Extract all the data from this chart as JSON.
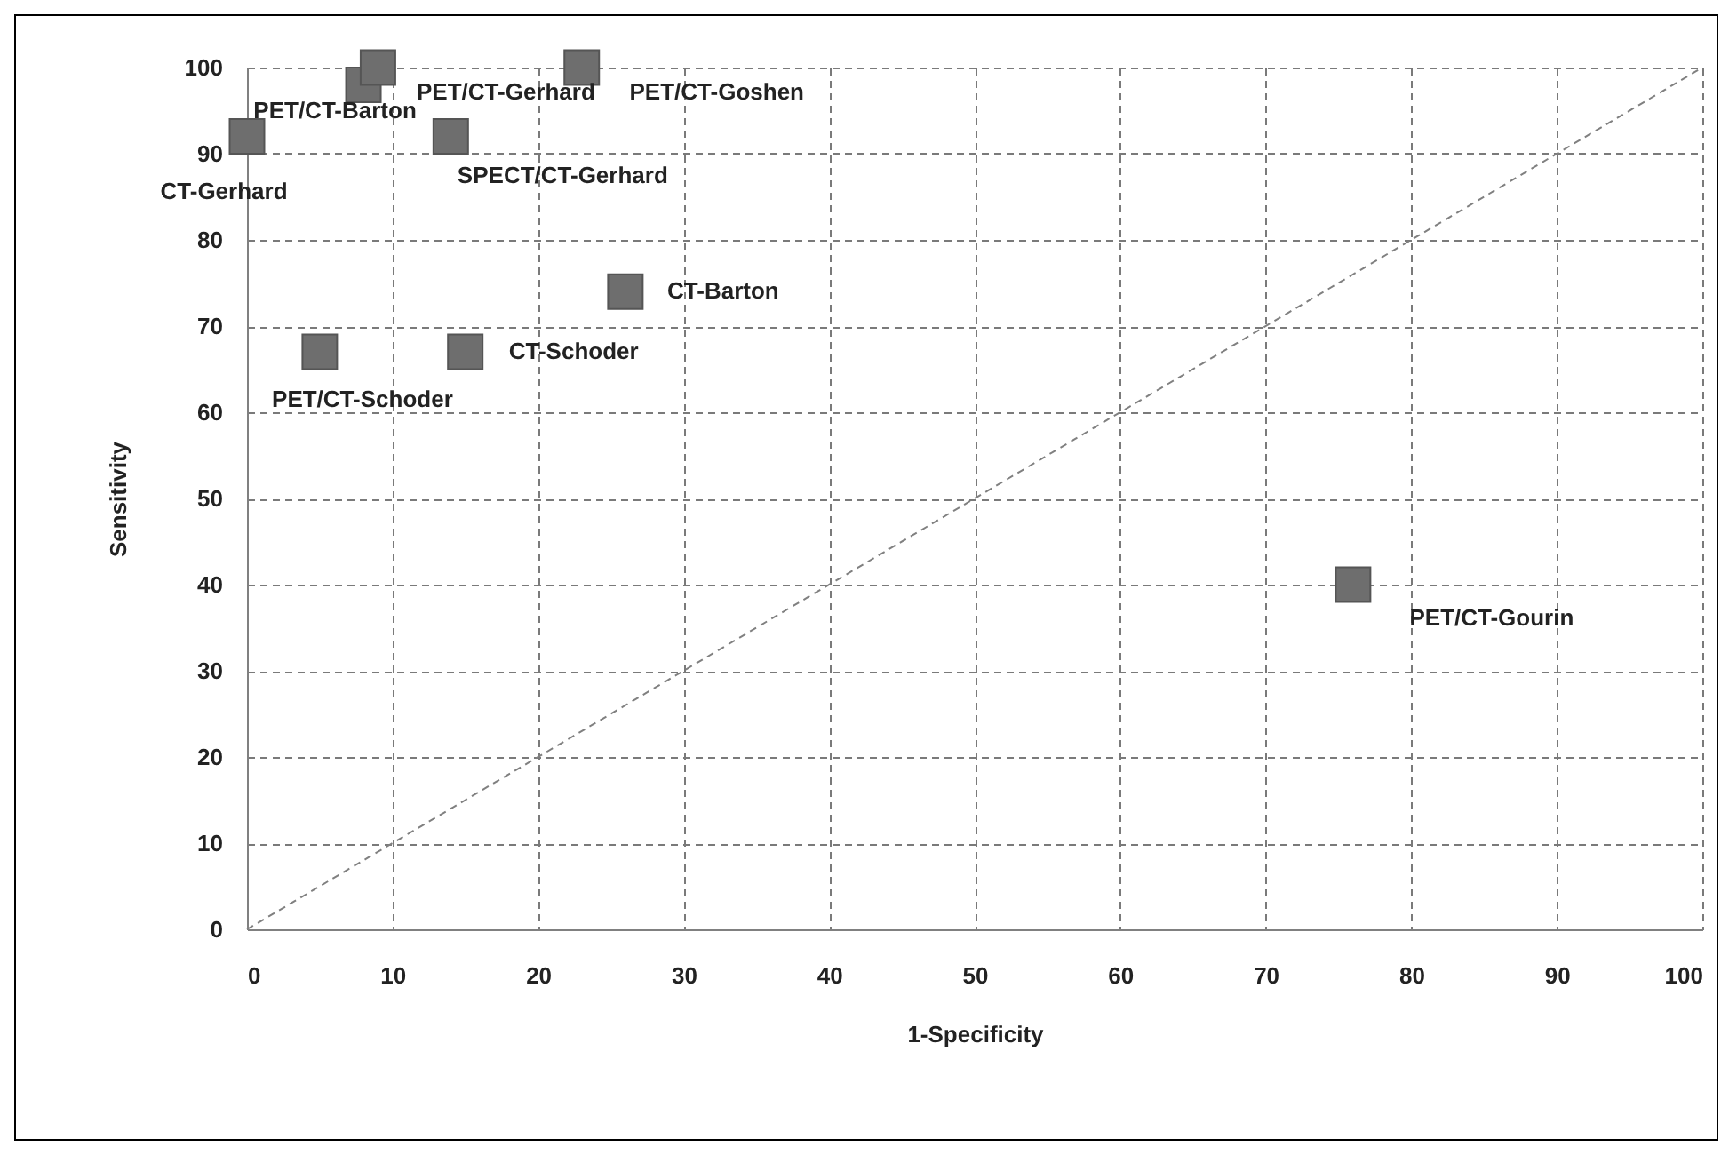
{
  "chart_data": {
    "type": "scatter",
    "xlabel": "1-Specificity",
    "ylabel": "Sensitivity",
    "xlim": [
      0,
      100
    ],
    "ylim": [
      0,
      100
    ],
    "xticks": [
      0,
      10,
      20,
      30,
      40,
      50,
      60,
      70,
      80,
      90,
      100
    ],
    "yticks": [
      0,
      10,
      20,
      30,
      40,
      50,
      60,
      70,
      80,
      90,
      100
    ],
    "grid": true,
    "series": [
      {
        "type": "scatter",
        "marker": "square",
        "color": "#6e6e6e",
        "x": [
          0,
          8,
          9,
          23,
          14,
          26,
          15,
          5,
          76
        ],
        "values": [
          92,
          98,
          100,
          100,
          92,
          74,
          67,
          67,
          40
        ]
      },
      {
        "type": "line",
        "marker": "none",
        "color": "#808080",
        "line_style": "dashed",
        "x": [
          0,
          100
        ],
        "values": [
          0,
          100
        ]
      }
    ],
    "annotations": [
      {
        "text": "CT-Gerhard",
        "x": 0,
        "y": 92
      },
      {
        "text": "PET/CT-Barton",
        "x": 8,
        "y": 98
      },
      {
        "text": "PET/CT-Gerhard",
        "x": 9,
        "y": 100
      },
      {
        "text": "PET/CT-Goshen",
        "x": 23,
        "y": 100
      },
      {
        "text": "SPECT/CT-Gerhard",
        "x": 14,
        "y": 92
      },
      {
        "text": "CT-Barton",
        "x": 26,
        "y": 74
      },
      {
        "text": "CT-Schoder",
        "x": 15,
        "y": 67
      },
      {
        "text": "PET/CT-Schoder",
        "x": 5,
        "y": 67
      },
      {
        "text": "PET/CT-Gourin",
        "x": 76,
        "y": 40
      }
    ]
  }
}
